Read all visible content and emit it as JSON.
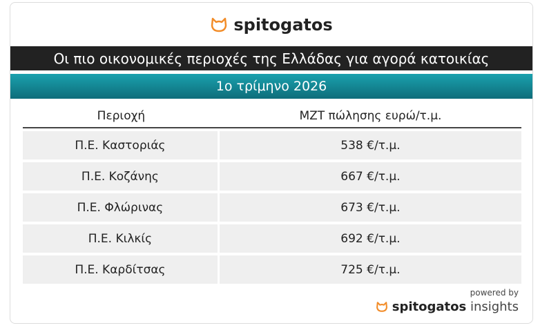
{
  "header": {
    "logo": "spitogatos",
    "title": "Οι πιο οικονομικές περιοχές της Ελλάδας για αγορά κατοικίας",
    "subtitle": "1ο τρίμηνο 2026"
  },
  "table": {
    "columns": [
      "Περιοχή",
      "ΜΖΤ πώλησης ευρώ/τ.μ."
    ],
    "rows": [
      [
        "Π.Ε. Καστοριάς",
        "538 €/τ.μ."
      ],
      [
        "Π.Ε. Κοζάνης",
        "667 €/τ.μ."
      ],
      [
        "Π.Ε. Φλώρινας",
        "673 €/τ.μ."
      ],
      [
        "Π.Ε. Κιλκίς",
        "692 €/τ.μ."
      ],
      [
        "Π.Ε. Καρδίτσας",
        "725 €/τ.μ."
      ]
    ]
  },
  "footer": {
    "powered_by": "powered by",
    "brand": "spitogatos",
    "brand_suffix": "insights"
  }
}
